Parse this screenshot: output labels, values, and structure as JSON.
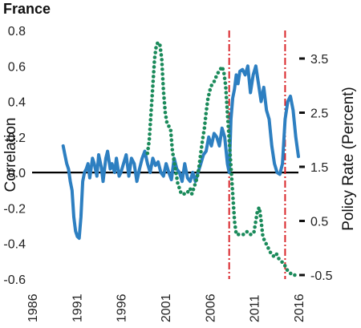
{
  "chart_data": {
    "type": "line",
    "title": "France",
    "ylabel_left": "Correlation",
    "ylabel_right": "Policy Rate (Percent)",
    "xlim": [
      1986,
      2016
    ],
    "ylim_left": [
      -0.6,
      0.8
    ],
    "ylim_right": [
      -0.5,
      3.5
    ],
    "x_ticks": [
      1986,
      1991,
      1996,
      2001,
      2006,
      2011,
      2016
    ],
    "y_left_ticks": [
      "0.8",
      "0.6",
      "0.4",
      "0.2",
      "0.0",
      "-0.2",
      "-0.4",
      "-0.6"
    ],
    "y_right_ticks": [
      "3.5",
      "2.5",
      "1.5",
      "0.5",
      "-0.5"
    ],
    "zero_line": 0,
    "vertical_markers": [
      2008.2,
      2014.5
    ],
    "colors": {
      "correlation": "#2d7fc1",
      "policy_rate": "#1a8a5a",
      "marker": "#d9252a",
      "zero": "#000000"
    },
    "series": [
      {
        "axis": "left",
        "style": "solid",
        "x": [
          1989.5,
          1989.7,
          1989.9,
          1990.1,
          1990.3,
          1990.5,
          1990.7,
          1990.9,
          1991.1,
          1991.3,
          1991.5,
          1991.7,
          1991.9,
          1992.1,
          1992.3,
          1992.5,
          1992.8,
          1993.0,
          1993.3,
          1993.5,
          1993.8,
          1994.0,
          1994.3,
          1994.5,
          1994.8,
          1995.0,
          1995.3,
          1995.5,
          1995.8,
          1996.0,
          1996.3,
          1996.6,
          1996.9,
          1997.2,
          1997.5,
          1997.8,
          1998.1,
          1998.4,
          1998.7,
          1999.0,
          1999.3,
          1999.6,
          1999.9,
          2000.2,
          2000.5,
          2000.8,
          2001.1,
          2001.4,
          2001.7,
          2002.0,
          2002.3,
          2002.6,
          2002.9,
          2003.2,
          2003.5,
          2003.8,
          2004.1,
          2004.4,
          2004.7,
          2005.0,
          2005.3,
          2005.6,
          2005.9,
          2006.2,
          2006.5,
          2006.8,
          2007.1,
          2007.4,
          2007.7,
          2008.0,
          2008.2,
          2008.4,
          2008.6,
          2008.8,
          2009.0,
          2009.2,
          2009.4,
          2009.7,
          2010.0,
          2010.3,
          2010.6,
          2010.9,
          2011.2,
          2011.5,
          2011.8,
          2012.1,
          2012.4,
          2012.7,
          2013.0,
          2013.3,
          2013.6,
          2013.9,
          2014.2,
          2014.5,
          2014.8,
          2015.1,
          2015.4,
          2015.7,
          2016.0
        ],
        "values": [
          0.15,
          0.1,
          0.05,
          0.02,
          -0.05,
          -0.1,
          -0.25,
          -0.33,
          -0.36,
          -0.37,
          -0.25,
          -0.05,
          0.0,
          0.02,
          0.05,
          -0.03,
          0.08,
          0.05,
          -0.02,
          0.1,
          0.03,
          -0.05,
          0.08,
          0.12,
          0.02,
          0.05,
          0.0,
          0.08,
          -0.02,
          0.0,
          0.05,
          0.1,
          -0.02,
          0.08,
          0.05,
          -0.05,
          0.02,
          0.08,
          0.12,
          0.05,
          0.0,
          0.08,
          0.04,
          0.06,
          0.0,
          -0.02,
          0.05,
          0.0,
          -0.04,
          0.08,
          0.02,
          0.0,
          -0.05,
          0.05,
          -0.03,
          -0.05,
          0.0,
          -0.05,
          0.0,
          0.05,
          0.1,
          0.12,
          0.2,
          0.15,
          0.22,
          0.2,
          0.15,
          0.25,
          0.2,
          0.05,
          0.0,
          0.3,
          0.42,
          0.47,
          0.55,
          0.5,
          0.57,
          0.58,
          0.55,
          0.6,
          0.45,
          0.55,
          0.6,
          0.5,
          0.4,
          0.48,
          0.35,
          0.3,
          0.15,
          0.05,
          0.0,
          -0.01,
          0.05,
          0.3,
          0.4,
          0.43,
          0.35,
          0.2,
          0.09
        ]
      },
      {
        "axis": "right",
        "style": "dotted",
        "x": [
          1999.0,
          1999.2,
          1999.4,
          1999.6,
          1999.8,
          2000.0,
          2000.2,
          2000.4,
          2000.6,
          2000.8,
          2001.0,
          2001.2,
          2001.4,
          2001.6,
          2001.8,
          2002.0,
          2002.2,
          2002.4,
          2002.6,
          2002.8,
          2003.0,
          2003.2,
          2003.4,
          2003.6,
          2003.8,
          2004.0,
          2004.2,
          2004.4,
          2004.6,
          2004.8,
          2005.0,
          2005.2,
          2005.4,
          2005.6,
          2005.8,
          2006.0,
          2006.2,
          2006.4,
          2006.6,
          2006.8,
          2007.0,
          2007.2,
          2007.4,
          2007.6,
          2007.8,
          2008.0,
          2008.2,
          2008.4,
          2008.6,
          2008.8,
          2009.0,
          2009.3,
          2009.6,
          2009.9,
          2010.2,
          2010.5,
          2010.8,
          2011.0,
          2011.2,
          2011.4,
          2011.6,
          2011.8,
          2012.0,
          2012.3,
          2012.6,
          2012.9,
          2013.2,
          2013.5,
          2013.8,
          2014.1,
          2014.4,
          2014.7,
          2015.0,
          2015.3,
          2015.6
        ],
        "values": [
          1.75,
          2.0,
          2.5,
          3.0,
          3.5,
          3.75,
          3.8,
          3.75,
          3.5,
          2.9,
          2.5,
          2.3,
          2.25,
          2.2,
          1.8,
          1.6,
          1.4,
          1.2,
          1.1,
          1.0,
          1.0,
          1.0,
          1.0,
          1.05,
          1.1,
          1.0,
          1.1,
          1.2,
          1.3,
          1.5,
          1.75,
          2.0,
          2.2,
          2.5,
          2.75,
          2.9,
          3.0,
          3.05,
          3.1,
          3.2,
          3.25,
          3.3,
          3.35,
          3.25,
          3.0,
          2.5,
          2.0,
          1.5,
          1.0,
          0.5,
          0.25,
          0.25,
          0.25,
          0.25,
          0.3,
          0.25,
          0.25,
          0.3,
          0.5,
          0.7,
          0.75,
          0.5,
          0.2,
          0.1,
          0.0,
          -0.1,
          -0.15,
          -0.1,
          -0.2,
          -0.25,
          -0.3,
          -0.4,
          -0.45,
          -0.5,
          -0.5
        ]
      }
    ]
  }
}
